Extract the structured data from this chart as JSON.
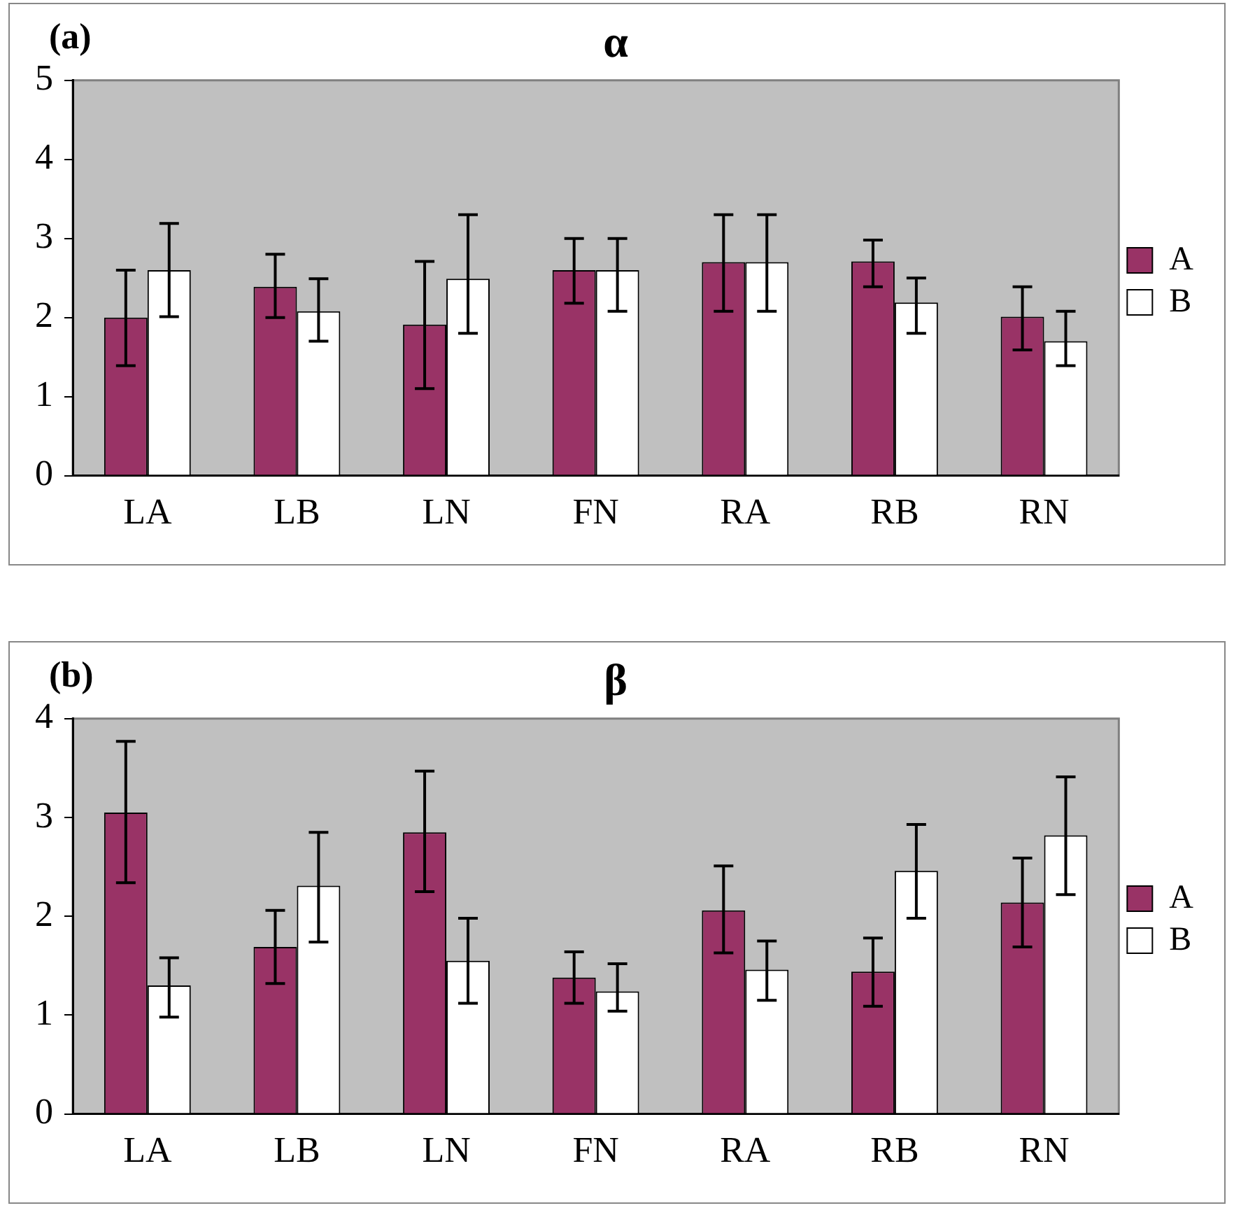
{
  "chart_data": [
    {
      "type": "bar",
      "title": "α",
      "annotations": [
        "(a)"
      ],
      "categories": [
        "LA",
        "LB",
        "LN",
        "FN",
        "RA",
        "RB",
        "RN"
      ],
      "series": [
        {
          "name": "A",
          "color": "#993366",
          "values": [
            2.0,
            2.39,
            1.91,
            2.6,
            2.7,
            2.71,
            2.01
          ],
          "errors": [
            [
              1.39,
              2.6
            ],
            [
              2.0,
              2.8
            ],
            [
              1.1,
              2.71
            ],
            [
              2.18,
              3.0
            ],
            [
              2.08,
              3.3
            ],
            [
              2.39,
              2.98
            ],
            [
              1.59,
              2.39
            ]
          ]
        },
        {
          "name": "B",
          "color": "#ffffff",
          "values": [
            2.6,
            2.08,
            2.49,
            2.6,
            2.7,
            2.19,
            1.7
          ],
          "errors": [
            [
              2.01,
              3.19
            ],
            [
              1.7,
              2.49
            ],
            [
              1.8,
              3.3
            ],
            [
              2.08,
              3.0
            ],
            [
              2.08,
              3.3
            ],
            [
              1.8,
              2.5
            ],
            [
              1.39,
              2.08
            ]
          ]
        }
      ],
      "ylim": [
        0,
        5
      ],
      "yticks": [
        0,
        1,
        2,
        3,
        4,
        5
      ],
      "grid": false,
      "legend": "right"
    },
    {
      "type": "bar",
      "title": "β",
      "annotations": [
        "(b)"
      ],
      "categories": [
        "LA",
        "LB",
        "LN",
        "FN",
        "RA",
        "RB",
        "RN"
      ],
      "series": [
        {
          "name": "A",
          "color": "#993366",
          "values": [
            3.05,
            1.69,
            2.85,
            1.38,
            2.06,
            1.44,
            2.14
          ],
          "errors": [
            [
              2.34,
              3.77
            ],
            [
              1.32,
              2.06
            ],
            [
              2.25,
              3.47
            ],
            [
              1.12,
              1.64
            ],
            [
              1.63,
              2.51
            ],
            [
              1.09,
              1.78
            ],
            [
              1.69,
              2.59
            ]
          ]
        },
        {
          "name": "B",
          "color": "#ffffff",
          "values": [
            1.3,
            2.31,
            1.55,
            1.24,
            1.46,
            2.46,
            2.82
          ],
          "errors": [
            [
              0.98,
              1.58
            ],
            [
              1.74,
              2.85
            ],
            [
              1.12,
              1.98
            ],
            [
              1.04,
              1.52
            ],
            [
              1.15,
              1.75
            ],
            [
              1.98,
              2.93
            ],
            [
              2.22,
              3.41
            ]
          ]
        }
      ],
      "ylim": [
        0,
        4
      ],
      "yticks": [
        0,
        1,
        2,
        3,
        4
      ],
      "grid": false,
      "legend": "right"
    }
  ]
}
